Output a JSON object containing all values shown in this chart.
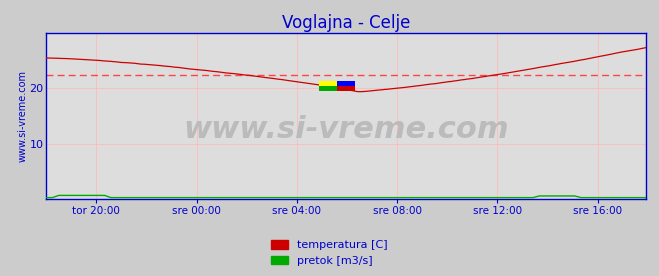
{
  "title": "Voglajna - Celje",
  "title_color": "#0000cc",
  "title_fontsize": 12,
  "bg_color": "#cccccc",
  "plot_bg_color": "#dddddd",
  "grid_color": "#ffbbbb",
  "axis_color": "#0000cc",
  "spine_color": "#0000cc",
  "ylabel_text": "www.si-vreme.com",
  "ylabel_color": "#0000cc",
  "ylabel_fontsize": 7,
  "watermark_text": "www.si-vreme.com",
  "watermark_color": "#bbbbbb",
  "watermark_fontsize": 22,
  "xlim": [
    0,
    287
  ],
  "ylim": [
    0,
    30
  ],
  "yticks": [
    10,
    20
  ],
  "xtick_labels": [
    "tor 20:00",
    "sre 00:00",
    "sre 04:00",
    "sre 08:00",
    "sre 12:00",
    "sre 16:00"
  ],
  "xtick_positions": [
    24,
    72,
    120,
    168,
    216,
    264
  ],
  "avg_line_value": 22.5,
  "avg_line_color": "#ff4444",
  "temp_color": "#cc0000",
  "flow_color": "#00aa00",
  "legend_temp_label": "temperatura [C]",
  "legend_flow_label": "pretok [m3/s]",
  "legend_fontsize": 8,
  "n_points": 288
}
